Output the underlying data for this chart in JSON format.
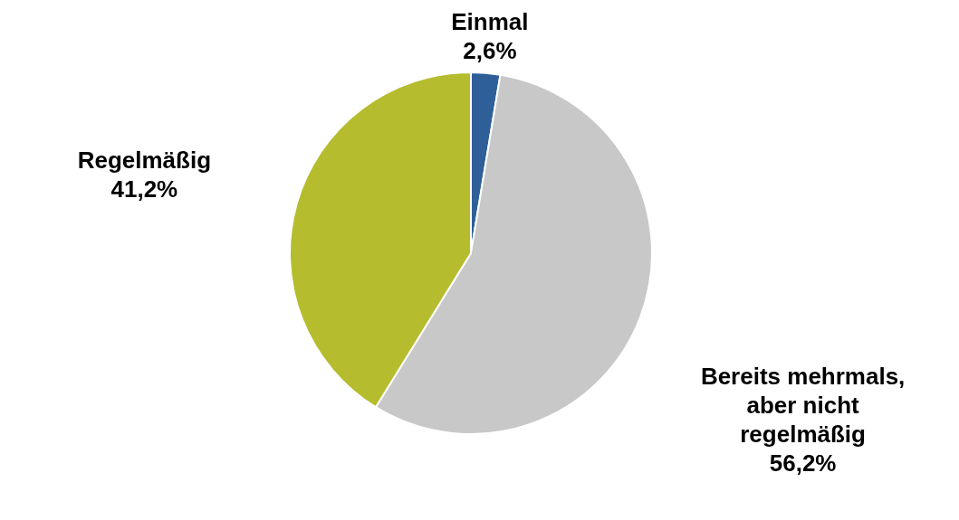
{
  "chart_data": {
    "type": "pie",
    "categories": [
      "Einmal",
      "Bereits mehrmals, aber nicht regelmäßig",
      "Regelmäßig"
    ],
    "values": [
      2.6,
      56.2,
      41.2
    ],
    "value_labels": [
      "2,6%",
      "56,2%",
      "41,2%"
    ],
    "colors": [
      "#2e5f99",
      "#c8c8c8",
      "#b5bd2e"
    ],
    "legend": false
  }
}
